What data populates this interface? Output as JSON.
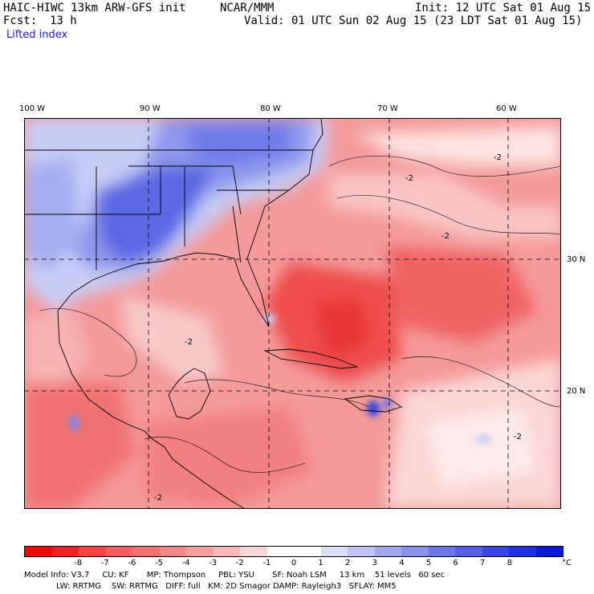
{
  "header": {
    "model_line": "HAIC-HIWC 13km ARW-GFS init",
    "org": "NCAR/MMM",
    "init": "Init: 12 UTC Sat 01 Aug 15",
    "fcst_label": "Fcst:",
    "fcst_value": "13 h",
    "valid": "Valid: 01 UTC Sun 02 Aug 15 (23 LDT Sat 01 Aug 15)",
    "field": "Lifted index"
  },
  "map": {
    "lon_labels": [
      "100 W",
      "90 W",
      "80 W",
      "70 W",
      "60 W"
    ],
    "lat_labels": [
      "30 N",
      "20 N"
    ],
    "contour_label": "-2",
    "colors": {
      "stable_blue": "#4a5fe6",
      "weak_blue": "#b8c2f2",
      "neutral": "#ffffff",
      "weak_red": "#f7b8b8",
      "unstable_red": "#ee4d4d"
    }
  },
  "colorbar": {
    "labels": [
      "-8",
      "-7",
      "-6",
      "-5",
      "-4",
      "-3",
      "-2",
      "-1",
      "0",
      "1",
      "2",
      "3",
      "4",
      "5",
      "6",
      "7",
      "8"
    ],
    "unit": "°C",
    "colors": [
      "#ff0000",
      "#ff2222",
      "#ff4444",
      "#f56060",
      "#f37373",
      "#f58888",
      "#f7a0a0",
      "#f9b9b9",
      "#fcd6d6",
      "#ffffff",
      "#ffffff",
      "#dcdff9",
      "#bfc4f5",
      "#a2a9f0",
      "#8a92ee",
      "#6d78ea",
      "#5560e7",
      "#3a46e2",
      "#2230e0",
      "#0b1ad8"
    ]
  },
  "model_info": {
    "line1": "Model Info: V3.7     CU: KF       MP: Thompson     PBL: YSU       SF: Noah LSM     13 km    51 levels   60 sec",
    "line2": "LW: RRTMG    SW: RRTMG   DIFF: full   KM: 2D Smagor DAMP: Rayleigh3   SFLAY: MM5"
  }
}
